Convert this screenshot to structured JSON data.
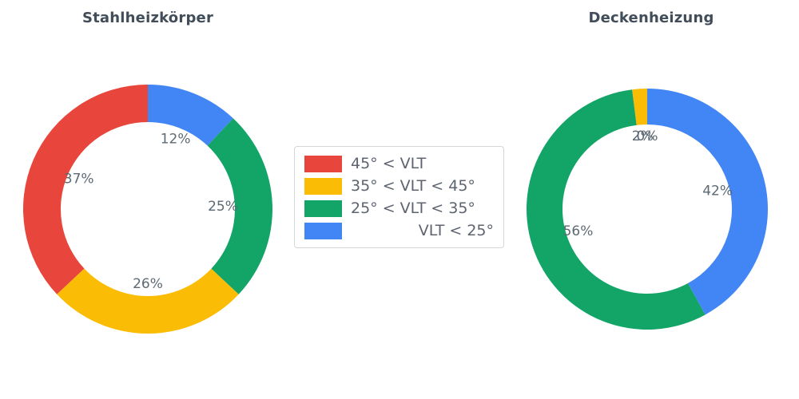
{
  "figure": {
    "background": "#ffffff",
    "label_color": "#5d6973",
    "title_color": "#414d59"
  },
  "chart_data": [
    {
      "type": "pie",
      "subtype": "donut",
      "title": "Stahlheizkörper",
      "labels": [
        "45° < VLT",
        "35° < VLT < 45°",
        "25° < VLT < 35°",
        "VLT < 25°"
      ],
      "values": [
        37,
        26,
        25,
        12
      ],
      "value_labels": [
        "37%",
        "26%",
        "25%",
        "12%"
      ],
      "colors": [
        "#e8453c",
        "#fbbc05",
        "#13a568",
        "#4285f4"
      ],
      "start_angle": 90,
      "direction": "counterclockwise",
      "units": "percent",
      "legend_position": "center"
    },
    {
      "type": "pie",
      "subtype": "donut",
      "title": "Deckenheizung",
      "labels": [
        "45° < VLT",
        "35° < VLT < 45°",
        "25° < VLT < 35°",
        "VLT < 25°"
      ],
      "values": [
        0,
        2,
        56,
        42
      ],
      "value_labels": [
        "0%",
        "2%",
        "56%",
        "42%"
      ],
      "colors": [
        "#e8453c",
        "#fbbc05",
        "#13a568",
        "#4285f4"
      ],
      "start_angle": 90,
      "direction": "counterclockwise",
      "units": "percent",
      "legend_position": "center"
    }
  ],
  "legend": {
    "items": [
      {
        "label": "45° < VLT",
        "color": "#e8453c"
      },
      {
        "label": "35° < VLT < 45°",
        "color": "#fbbc05"
      },
      {
        "label": "25° < VLT < 35°",
        "color": "#13a568"
      },
      {
        "label": "VLT < 25°",
        "color": "#4285f4"
      }
    ]
  }
}
